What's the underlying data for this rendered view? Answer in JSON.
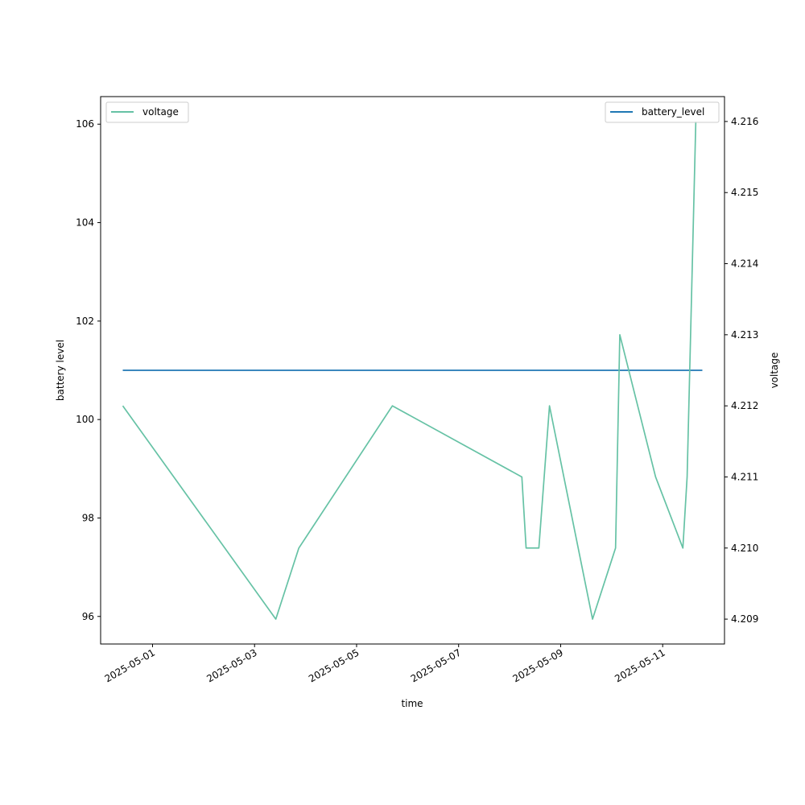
{
  "chart_data": {
    "type": "line",
    "xlabel": "time",
    "ylabel_left": "battery level",
    "ylabel_right": "voltage",
    "x_ticks": [
      "2025-05-01",
      "2025-05-03",
      "2025-05-05",
      "2025-05-07",
      "2025-05-09",
      "2025-05-11"
    ],
    "y_left_ticks": [
      "96",
      "98",
      "100",
      "102",
      "104",
      "106"
    ],
    "y_right_ticks": [
      "4.209",
      "4.210",
      "4.211",
      "4.212",
      "4.213",
      "4.214",
      "4.215",
      "4.216"
    ],
    "y_left_range": [
      95.44,
      106.56
    ],
    "y_right_range": [
      4.20865,
      4.21635
    ],
    "x_range": [
      "2025-04-29T23:35",
      "2025-05-12T05:05"
    ],
    "legend_left": {
      "label": "voltage",
      "placement": "upper-left"
    },
    "legend_right": {
      "label": "battery_level",
      "placement": "upper-right"
    },
    "series": [
      {
        "name": "battery_level",
        "axis": "left",
        "color": "#1f77b4",
        "points": [
          {
            "x": "2025-04-30T10:00",
            "y": 101
          },
          {
            "x": "2025-05-11T18:40",
            "y": 101
          }
        ]
      },
      {
        "name": "voltage",
        "axis": "right",
        "color": "#66c2a5",
        "points": [
          {
            "x": "2025-04-30T10:00",
            "y": 4.212
          },
          {
            "x": "2025-05-03T10:00",
            "y": 4.209
          },
          {
            "x": "2025-05-03T20:50",
            "y": 4.21
          },
          {
            "x": "2025-05-05T16:50",
            "y": 4.212
          },
          {
            "x": "2025-05-08T05:45",
            "y": 4.211
          },
          {
            "x": "2025-05-08T07:45",
            "y": 4.21
          },
          {
            "x": "2025-05-08T13:45",
            "y": 4.21
          },
          {
            "x": "2025-05-08T18:45",
            "y": 4.212
          },
          {
            "x": "2025-05-09T15:00",
            "y": 4.209
          },
          {
            "x": "2025-05-10T01:50",
            "y": 4.21
          },
          {
            "x": "2025-05-10T03:50",
            "y": 4.213
          },
          {
            "x": "2025-05-10T20:40",
            "y": 4.211
          },
          {
            "x": "2025-05-11T09:30",
            "y": 4.21
          },
          {
            "x": "2025-05-11T11:30",
            "y": 4.211
          },
          {
            "x": "2025-05-11T15:35",
            "y": 4.216
          }
        ]
      }
    ]
  }
}
